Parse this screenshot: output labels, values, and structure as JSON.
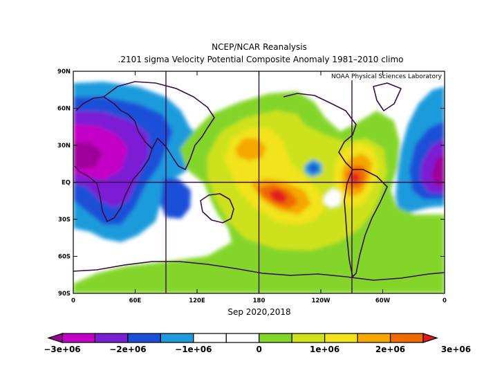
{
  "title": "NCEP/NCAR Reanalysis",
  "subtitle": ".2101 sigma Velocity Potential  Composite Anomaly 1981–2010 climo",
  "credit": "NOAA Physical Sciences Laboratory",
  "date_label": "Sep 2020,2018",
  "lat_ticks": [
    "90N",
    "60N",
    "30N",
    "EQ",
    "30S",
    "60S",
    "90S"
  ],
  "lon_ticks": [
    "0",
    "60E",
    "120E",
    "180",
    "120W",
    "60W",
    "0"
  ],
  "colorbar": {
    "colors": [
      "#9f0099",
      "#c400c6",
      "#7b1fd4",
      "#1a4fd8",
      "#1e9bdc",
      "#ffffff",
      "#ffffff",
      "#84d52a",
      "#cde21a",
      "#f2e31d",
      "#f5a800",
      "#ef6a00",
      "#e41a1c"
    ],
    "labels": [
      "−3e+06",
      "−2e+06",
      "−1e+06",
      "0",
      "1e+06",
      "2e+06",
      "3e+06"
    ]
  }
}
